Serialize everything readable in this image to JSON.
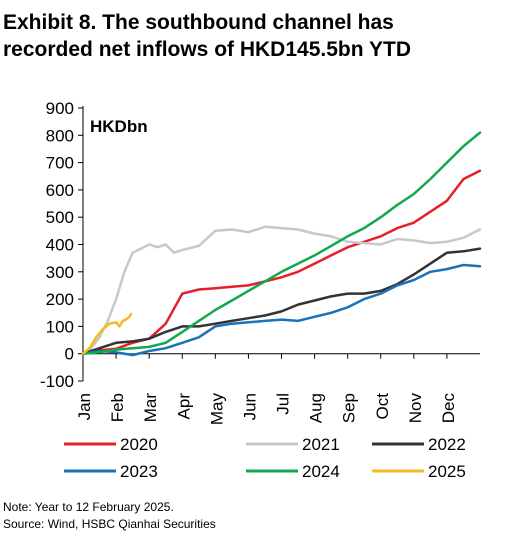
{
  "title_lines": [
    "Exhibit 8. The southbound channel has",
    "recorded net inflows of HKD145.5bn YTD"
  ],
  "notes": {
    "note": "Note: Year to 12 February 2025.",
    "source": "Source: Wind, HSBC Qianhai Securities"
  },
  "chart_data": {
    "type": "line",
    "unit_label": "HKDbn",
    "x_axis_ticks": [
      "Jan",
      "Feb",
      "Mar",
      "Apr",
      "May",
      "Jun",
      "Jul",
      "Aug",
      "Sep",
      "Oct",
      "Nov",
      "Dec"
    ],
    "x_domain_months": [
      0,
      12
    ],
    "ylim": [
      -100,
      900
    ],
    "y_ticks": [
      -100,
      0,
      100,
      200,
      300,
      400,
      500,
      600,
      700,
      800,
      900
    ],
    "grid": false,
    "legend_position": "bottom",
    "series": [
      {
        "name": "2020",
        "color": "#e4202a",
        "points": [
          [
            0,
            0
          ],
          [
            0.5,
            12
          ],
          [
            1,
            18
          ],
          [
            1.5,
            40
          ],
          [
            2,
            55
          ],
          [
            2.5,
            110
          ],
          [
            3,
            220
          ],
          [
            3.5,
            235
          ],
          [
            4,
            240
          ],
          [
            4.5,
            245
          ],
          [
            5,
            250
          ],
          [
            5.5,
            265
          ],
          [
            6,
            280
          ],
          [
            6.5,
            300
          ],
          [
            7,
            330
          ],
          [
            7.5,
            360
          ],
          [
            8,
            390
          ],
          [
            8.5,
            410
          ],
          [
            9,
            430
          ],
          [
            9.5,
            460
          ],
          [
            10,
            480
          ],
          [
            10.5,
            520
          ],
          [
            11,
            560
          ],
          [
            11.5,
            640
          ],
          [
            12,
            670
          ]
        ]
      },
      {
        "name": "2021",
        "color": "#c8c8c8",
        "points": [
          [
            0,
            0
          ],
          [
            0.25,
            20
          ],
          [
            0.5,
            60
          ],
          [
            0.75,
            120
          ],
          [
            1,
            200
          ],
          [
            1.25,
            300
          ],
          [
            1.5,
            370
          ],
          [
            1.75,
            385
          ],
          [
            2,
            400
          ],
          [
            2.25,
            390
          ],
          [
            2.5,
            400
          ],
          [
            2.75,
            370
          ],
          [
            3,
            380
          ],
          [
            3.5,
            395
          ],
          [
            4,
            450
          ],
          [
            4.5,
            455
          ],
          [
            5,
            445
          ],
          [
            5.5,
            465
          ],
          [
            6,
            460
          ],
          [
            6.5,
            455
          ],
          [
            7,
            440
          ],
          [
            7.5,
            430
          ],
          [
            8,
            410
          ],
          [
            8.5,
            405
          ],
          [
            9,
            400
          ],
          [
            9.5,
            420
          ],
          [
            10,
            415
          ],
          [
            10.5,
            405
          ],
          [
            11,
            410
          ],
          [
            11.5,
            425
          ],
          [
            12,
            455
          ]
        ]
      },
      {
        "name": "2022",
        "color": "#333333",
        "points": [
          [
            0,
            0
          ],
          [
            0.5,
            20
          ],
          [
            1,
            40
          ],
          [
            1.5,
            45
          ],
          [
            2,
            55
          ],
          [
            2.5,
            80
          ],
          [
            3,
            100
          ],
          [
            3.5,
            100
          ],
          [
            4,
            110
          ],
          [
            4.5,
            120
          ],
          [
            5,
            130
          ],
          [
            5.5,
            140
          ],
          [
            6,
            155
          ],
          [
            6.5,
            180
          ],
          [
            7,
            195
          ],
          [
            7.5,
            210
          ],
          [
            8,
            220
          ],
          [
            8.5,
            220
          ],
          [
            9,
            230
          ],
          [
            9.5,
            255
          ],
          [
            10,
            290
          ],
          [
            10.5,
            330
          ],
          [
            11,
            370
          ],
          [
            11.5,
            375
          ],
          [
            12,
            385
          ]
        ]
      },
      {
        "name": "2023",
        "color": "#1b72bc",
        "points": [
          [
            0,
            0
          ],
          [
            0.5,
            10
          ],
          [
            1,
            5
          ],
          [
            1.5,
            -5
          ],
          [
            2,
            10
          ],
          [
            2.5,
            20
          ],
          [
            3,
            40
          ],
          [
            3.5,
            60
          ],
          [
            4,
            100
          ],
          [
            4.5,
            110
          ],
          [
            5,
            115
          ],
          [
            5.5,
            120
          ],
          [
            6,
            125
          ],
          [
            6.5,
            120
          ],
          [
            7,
            135
          ],
          [
            7.5,
            150
          ],
          [
            8,
            170
          ],
          [
            8.5,
            200
          ],
          [
            9,
            220
          ],
          [
            9.5,
            250
          ],
          [
            10,
            270
          ],
          [
            10.5,
            300
          ],
          [
            11,
            310
          ],
          [
            11.5,
            325
          ],
          [
            12,
            320
          ]
        ]
      },
      {
        "name": "2024",
        "color": "#11a84f",
        "points": [
          [
            0,
            0
          ],
          [
            0.5,
            5
          ],
          [
            1,
            15
          ],
          [
            1.5,
            20
          ],
          [
            2,
            25
          ],
          [
            2.5,
            40
          ],
          [
            3,
            80
          ],
          [
            3.5,
            120
          ],
          [
            4,
            160
          ],
          [
            4.5,
            195
          ],
          [
            5,
            230
          ],
          [
            5.5,
            265
          ],
          [
            6,
            300
          ],
          [
            6.5,
            330
          ],
          [
            7,
            360
          ],
          [
            7.5,
            395
          ],
          [
            8,
            430
          ],
          [
            8.5,
            460
          ],
          [
            9,
            500
          ],
          [
            9.5,
            545
          ],
          [
            10,
            585
          ],
          [
            10.5,
            640
          ],
          [
            11,
            700
          ],
          [
            11.5,
            760
          ],
          [
            12,
            810
          ]
        ]
      },
      {
        "name": "2025",
        "color": "#f7b822",
        "points": [
          [
            0,
            0
          ],
          [
            0.2,
            20
          ],
          [
            0.4,
            60
          ],
          [
            0.6,
            90
          ],
          [
            0.8,
            110
          ],
          [
            1,
            115
          ],
          [
            1.1,
            100
          ],
          [
            1.2,
            120
          ],
          [
            1.3,
            125
          ],
          [
            1.4,
            135
          ],
          [
            1.45,
            145
          ]
        ]
      }
    ]
  }
}
